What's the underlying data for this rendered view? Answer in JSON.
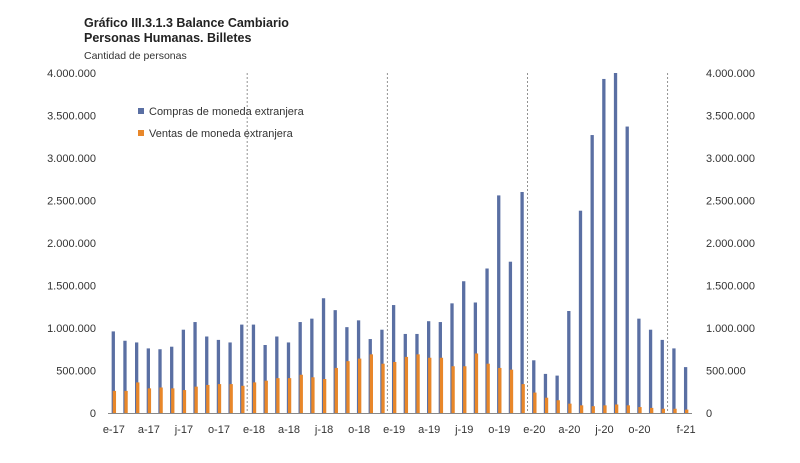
{
  "chart_data": {
    "type": "bar",
    "title": "Gráfico III.3.1.3 Balance Cambiario",
    "subtitle": "Personas Humanas. Billetes",
    "ylabel": "Cantidad de personas",
    "ylim": [
      0,
      4000000
    ],
    "yticks": [
      "0",
      "500.000",
      "1.000.000",
      "1.500.000",
      "2.000.000",
      "2.500.000",
      "3.000.000",
      "3.500.000",
      "4.000.000"
    ],
    "xtick_labels": [
      {
        "index": 0,
        "label": "e-17"
      },
      {
        "index": 3,
        "label": "a-17"
      },
      {
        "index": 6,
        "label": "j-17"
      },
      {
        "index": 9,
        "label": "o-17"
      },
      {
        "index": 12,
        "label": "e-18"
      },
      {
        "index": 15,
        "label": "a-18"
      },
      {
        "index": 18,
        "label": "j-18"
      },
      {
        "index": 21,
        "label": "o-18"
      },
      {
        "index": 24,
        "label": "e-19"
      },
      {
        "index": 27,
        "label": "a-19"
      },
      {
        "index": 30,
        "label": "j-19"
      },
      {
        "index": 33,
        "label": "o-19"
      },
      {
        "index": 36,
        "label": "e-20"
      },
      {
        "index": 39,
        "label": "a-20"
      },
      {
        "index": 42,
        "label": "j-20"
      },
      {
        "index": 45,
        "label": "o-20"
      },
      {
        "index": 49,
        "label": "f-21"
      }
    ],
    "year_dividers": [
      12,
      24,
      36,
      48
    ],
    "legend_position": "top-left",
    "series": [
      {
        "name": "Compras de moneda extranjera",
        "color": "#5a6fa3",
        "values": [
          960000,
          850000,
          830000,
          760000,
          750000,
          780000,
          980000,
          1070000,
          900000,
          860000,
          830000,
          1040000,
          1040000,
          800000,
          900000,
          830000,
          1070000,
          1110000,
          1350000,
          1210000,
          1010000,
          1090000,
          870000,
          980000,
          1270000,
          930000,
          930000,
          1080000,
          1070000,
          1290000,
          1550000,
          1300000,
          1700000,
          2560000,
          1780000,
          2600000,
          620000,
          460000,
          440000,
          1200000,
          2380000,
          3270000,
          3930000,
          4000000,
          3370000,
          1110000,
          980000,
          860000,
          760000,
          540000
        ]
      },
      {
        "name": "Ventas de moneda extranjera",
        "color": "#e8872a",
        "values": [
          260000,
          260000,
          360000,
          290000,
          300000,
          290000,
          270000,
          310000,
          330000,
          340000,
          340000,
          320000,
          360000,
          380000,
          410000,
          410000,
          450000,
          420000,
          400000,
          530000,
          610000,
          640000,
          690000,
          580000,
          600000,
          660000,
          690000,
          650000,
          650000,
          550000,
          550000,
          700000,
          580000,
          530000,
          510000,
          340000,
          240000,
          180000,
          150000,
          110000,
          90000,
          80000,
          90000,
          100000,
          90000,
          70000,
          60000,
          50000,
          50000,
          40000
        ]
      }
    ]
  }
}
